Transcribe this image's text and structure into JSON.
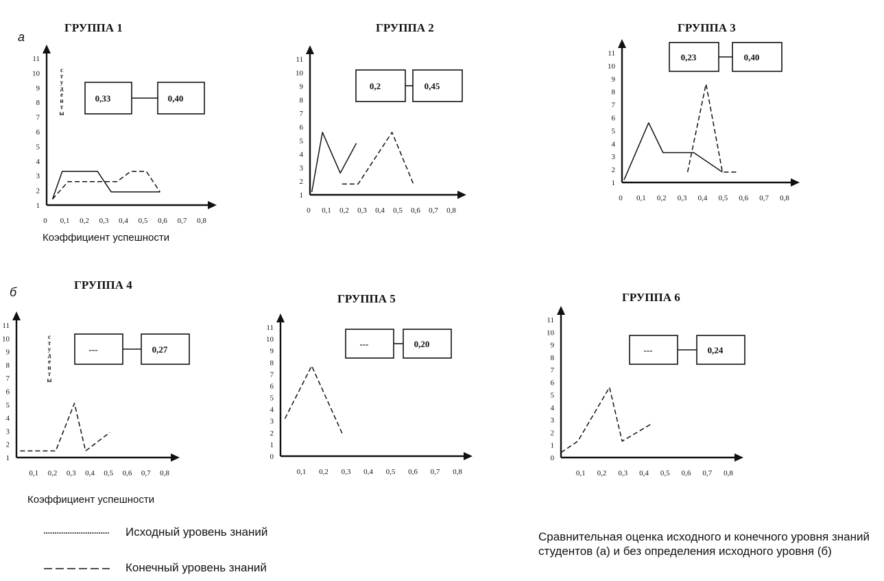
{
  "figure": {
    "panel_labels": [
      "а",
      "б"
    ],
    "legend": {
      "initial_label": "Исходный уровень знаний",
      "final_label": "Конечный уровень знаний"
    },
    "caption": "Сравнительная оценка исходного и конечного уровня знаний студентов (а) и без определения исходного уровня (б)",
    "colors": {
      "ink": "#111111",
      "axis": "#111111"
    }
  },
  "chart_data": [
    {
      "type": "line",
      "title": "ГРУППА 1",
      "xlabel": "Коэффициент успешности",
      "ylabel": "студенты",
      "x_ticks": [
        "0",
        "0,1",
        "0,2",
        "0,3",
        "0,4",
        "0,5",
        "0,6",
        "0,7",
        "0,8"
      ],
      "y_ticks": [
        "1",
        "2",
        "3",
        "4",
        "5",
        "6",
        "7",
        "8",
        "9",
        "10",
        "11"
      ],
      "xlim": [
        0,
        0.8
      ],
      "ylim": [
        1,
        11
      ],
      "boxes": [
        "0,33",
        "0,40"
      ],
      "series": [
        {
          "style": "solid",
          "points": [
            [
              0.03,
              1.4
            ],
            [
              0.08,
              3.3
            ],
            [
              0.26,
              3.3
            ],
            [
              0.33,
              1.9
            ],
            [
              0.58,
              1.9
            ]
          ]
        },
        {
          "style": "dashed",
          "points": [
            [
              0.03,
              1.4
            ],
            [
              0.11,
              2.6
            ],
            [
              0.36,
              2.6
            ],
            [
              0.43,
              3.3
            ],
            [
              0.51,
              3.3
            ],
            [
              0.58,
              1.9
            ]
          ]
        }
      ]
    },
    {
      "type": "line",
      "title": "ГРУППА 2",
      "xlabel": "",
      "ylabel": "",
      "x_ticks": [
        "0",
        "0,1",
        "0,2",
        "0,3",
        "0,4",
        "0,5",
        "0,6",
        "0,7",
        "0,8"
      ],
      "y_ticks": [
        "1",
        "2",
        "3",
        "4",
        "5",
        "6",
        "7",
        "8",
        "9",
        "10",
        "11"
      ],
      "xlim": [
        0,
        0.8
      ],
      "ylim": [
        1,
        11
      ],
      "boxes": [
        "0,2",
        "0,45"
      ],
      "series": [
        {
          "style": "solid",
          "points": [
            [
              0.01,
              1.2
            ],
            [
              0.07,
              5.6
            ],
            [
              0.17,
              2.6
            ],
            [
              0.26,
              4.8
            ]
          ]
        },
        {
          "style": "dashed",
          "points": [
            [
              0.18,
              1.8
            ],
            [
              0.27,
              1.8
            ],
            [
              0.46,
              5.6
            ],
            [
              0.58,
              1.8
            ]
          ]
        }
      ]
    },
    {
      "type": "line",
      "title": "ГРУППА 3",
      "xlabel": "",
      "ylabel": "",
      "x_ticks": [
        "0",
        "0,1",
        "0,2",
        "0,3",
        "0,4",
        "0,5",
        "0,6",
        "0,7",
        "0,8"
      ],
      "y_ticks": [
        "1",
        "2",
        "3",
        "4",
        "5",
        "6",
        "7",
        "8",
        "9",
        "10",
        "11"
      ],
      "xlim": [
        0,
        0.8
      ],
      "ylim": [
        1,
        11
      ],
      "boxes": [
        "0,23",
        "0,40"
      ],
      "series": [
        {
          "style": "solid",
          "points": [
            [
              0.01,
              1.2
            ],
            [
              0.13,
              5.6
            ],
            [
              0.2,
              3.3
            ],
            [
              0.35,
              3.3
            ],
            [
              0.49,
              1.8
            ]
          ]
        },
        {
          "style": "dashed",
          "points": [
            [
              0.32,
              1.8
            ],
            [
              0.41,
              8.6
            ],
            [
              0.49,
              1.8
            ],
            [
              0.57,
              1.8
            ]
          ]
        }
      ]
    },
    {
      "type": "line",
      "title": "ГРУППА 4",
      "xlabel": "Коэффициент успешности",
      "ylabel": "студенты",
      "x_ticks": [
        "",
        "0,1",
        "0,2",
        "0,3",
        "0,4",
        "0,5",
        "0,6",
        "0,7",
        "0,8"
      ],
      "y_ticks": [
        "1",
        "2",
        "3",
        "4",
        "5",
        "6",
        "7",
        "8",
        "9",
        "10",
        "11"
      ],
      "xlim": [
        0,
        0.8
      ],
      "ylim": [
        1,
        11
      ],
      "boxes": [
        "---",
        "0,27"
      ],
      "series": [
        {
          "style": "dashed",
          "points": [
            [
              0.02,
              1.5
            ],
            [
              0.21,
              1.5
            ],
            [
              0.31,
              5.1
            ],
            [
              0.37,
              1.5
            ],
            [
              0.5,
              2.9
            ]
          ]
        }
      ]
    },
    {
      "type": "line",
      "title": "ГРУППА 5",
      "xlabel": "",
      "ylabel": "",
      "x_ticks": [
        "",
        "0,1",
        "0,2",
        "0,3",
        "0,4",
        "0,5",
        "0,6",
        "0,7",
        "0,8"
      ],
      "y_ticks": [
        "0",
        "1",
        "2",
        "3",
        "4",
        "5",
        "6",
        "7",
        "8",
        "9",
        "10",
        "11"
      ],
      "xlim": [
        0,
        0.8
      ],
      "ylim": [
        0,
        11
      ],
      "boxes": [
        "---",
        "0,20"
      ],
      "series": [
        {
          "style": "dashed",
          "points": [
            [
              0.02,
              3.2
            ],
            [
              0.14,
              7.7
            ],
            [
              0.28,
              1.8
            ]
          ]
        }
      ]
    },
    {
      "type": "line",
      "title": "ГРУППА 6",
      "xlabel": "",
      "ylabel": "",
      "x_ticks": [
        "",
        "0,1",
        "0,2",
        "0,3",
        "0,4",
        "0,5",
        "0,6",
        "0,7",
        "0,8"
      ],
      "y_ticks": [
        "0",
        "1",
        "2",
        "3",
        "4",
        "5",
        "6",
        "7",
        "8",
        "9",
        "10",
        "11"
      ],
      "xlim": [
        0,
        0.8
      ],
      "ylim": [
        0,
        11
      ],
      "boxes": [
        "---",
        "0,24"
      ],
      "series": [
        {
          "style": "dashed",
          "points": [
            [
              0.0,
              0.4
            ],
            [
              0.08,
              1.3
            ],
            [
              0.23,
              5.6
            ],
            [
              0.29,
              1.3
            ],
            [
              0.43,
              2.7
            ]
          ]
        }
      ]
    }
  ]
}
